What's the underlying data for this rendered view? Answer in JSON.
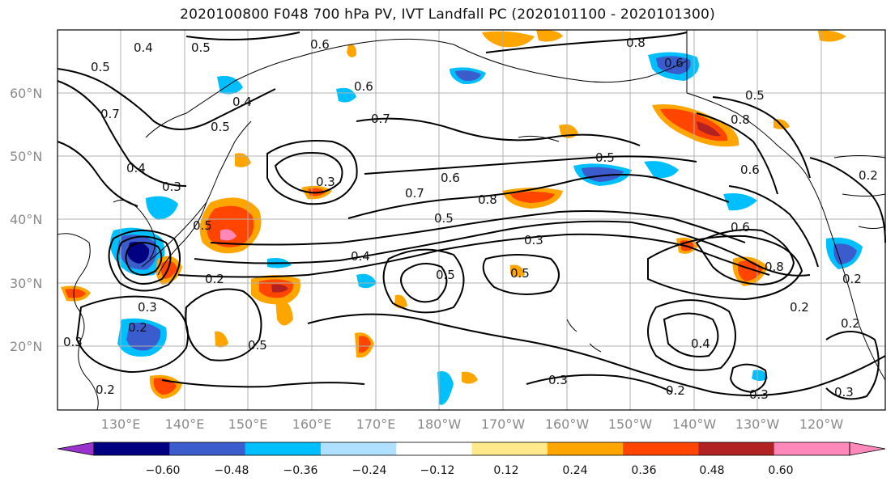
{
  "title": "2020100800 F048 700 hPa PV, IVT Landfall PC (2020101100 - 2020101300)",
  "map": {
    "lat_labels": [
      "60°N",
      "50°N",
      "40°N",
      "30°N",
      "20°N"
    ],
    "lon_labels": [
      "130°E",
      "140°E",
      "150°E",
      "160°E",
      "170°E",
      "180°W",
      "170°W",
      "160°W",
      "150°W",
      "140°W",
      "130°W",
      "120°W"
    ],
    "gridlines": true,
    "contour_labels": [
      "0.4",
      "0.5",
      "0.5",
      "0.6",
      "0.6",
      "0.8",
      "0.6",
      "0.8",
      "0.5",
      "0.7",
      "0.4",
      "0.5",
      "0.7",
      "0.3",
      "0.4",
      "0.5",
      "0.3",
      "0.7",
      "0.6",
      "0.8",
      "0.5",
      "0.3",
      "0.4",
      "0.5",
      "0.5",
      "0.2",
      "0.3",
      "0.2",
      "0.5",
      "0.2",
      "0.3",
      "0.2",
      "0.4",
      "0.6",
      "0.8",
      "0.2",
      "0.3",
      "0.3",
      "0.2",
      "0.3",
      "0.2",
      "0.6",
      "0.5",
      "0.2"
    ]
  },
  "colorbar": {
    "ticks": [
      "−0.60",
      "−0.48",
      "−0.36",
      "−0.24",
      "−0.12",
      "0.12",
      "0.24",
      "0.36",
      "0.48",
      "0.60"
    ],
    "colors": [
      "#9933cc",
      "#000080",
      "#3a5ccc",
      "#00bfff",
      "#b0e0ff",
      "#ffffff",
      "#ffe98a",
      "#ffa500",
      "#ff4500",
      "#b22222",
      "#ff88bb",
      "#ff88bb"
    ],
    "extend": "both"
  }
}
